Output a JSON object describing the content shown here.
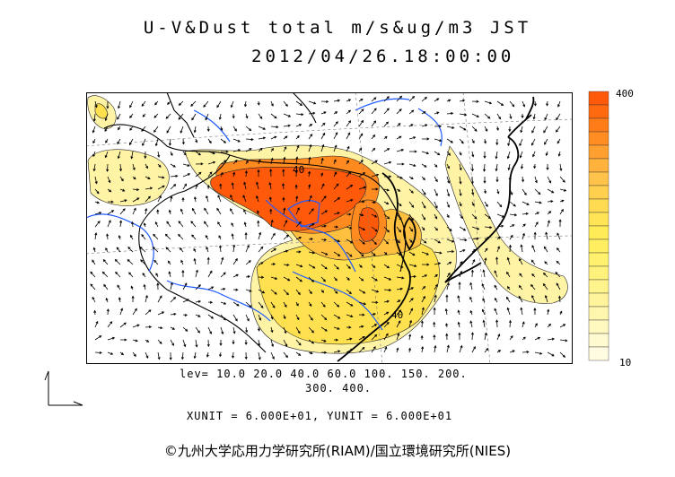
{
  "header": {
    "title": "U-V&Dust total m/s&ug/m3 JST",
    "datetime": "2012/04/26.18:00:00"
  },
  "colorbar": {
    "max_label": "400",
    "min_label": "10",
    "colors": [
      "#ff5a0a",
      "#ff6a10",
      "#ff7c18",
      "#ff8d22",
      "#ffa030",
      "#ffb33c",
      "#ffc24a",
      "#ffd04e",
      "#ffdb52",
      "#ffe555",
      "#ffec56",
      "#ffee60",
      "#fff06e",
      "#fff27c",
      "#fff38c",
      "#fff49c",
      "#fff6ae",
      "#fff8bf",
      "#fffad0",
      "#fffce2"
    ]
  },
  "contour_labels": {
    "a": "40",
    "b": "40"
  },
  "caption": {
    "levels_line1": "lev= 10.0 20.0 40.0 60.0 100. 150. 200.",
    "levels_line2": "300. 400.",
    "unit_line": "XUNIT = 6.000E+01, YUNIT = 6.000E+01"
  },
  "footer": {
    "copyright": "©九州大学応用力学研究所(RIAM)/国立環境研究所(NIES)"
  }
}
